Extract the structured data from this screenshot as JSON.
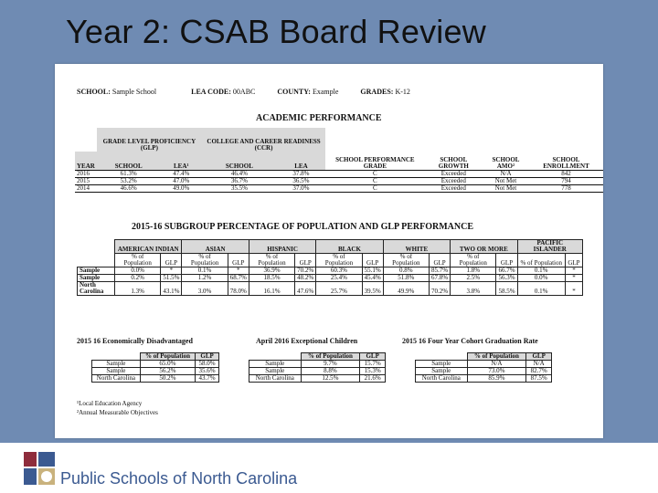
{
  "slide": {
    "title": "Year 2: CSAB Board Review",
    "footer": "Public Schools of North Carolina"
  },
  "header": {
    "school_label": "SCHOOL:",
    "school_value": "Sample School",
    "lea_label": "LEA CODE:",
    "lea_value": "00ABC",
    "county_label": "COUNTY:",
    "county_value": "Example",
    "grades_label": "GRADES:",
    "grades_value": "K-12"
  },
  "academic": {
    "title": "ACADEMIC PERFORMANCE",
    "group_glp": "GRADE LEVEL PROFICIENCY (GLP)",
    "group_ccr": "COLLEGE AND CAREER READINESS (CCR)",
    "cols": [
      "YEAR",
      "SCHOOL",
      "LEA¹",
      "SCHOOL",
      "LEA",
      "SCHOOL PERFORMANCE GRADE",
      "SCHOOL GROWTH",
      "SCHOOL AMO²",
      "SCHOOL ENROLLMENT"
    ],
    "rows": [
      [
        "2016",
        "61.3%",
        "47.4%",
        "46.4%",
        "37.8%",
        "C",
        "Exceeded",
        "N/A",
        "842"
      ],
      [
        "2015",
        "53.2%",
        "47.0%",
        "36.7%",
        "36.5%",
        "C",
        "Exceeded",
        "Not Met",
        "794"
      ],
      [
        "2014",
        "46.6%",
        "49.0%",
        "35.5%",
        "37.0%",
        "C",
        "Exceeded",
        "Not Met",
        "778"
      ]
    ]
  },
  "subgroup": {
    "title": "2015-16 SUBGROUP PERCENTAGE OF POPULATION AND GLP PERFORMANCE",
    "groups": [
      "AMERICAN INDIAN",
      "ASIAN",
      "HISPANIC",
      "BLACK",
      "WHITE",
      "TWO OR MORE",
      "PACIFIC ISLANDER"
    ],
    "sub_cols": [
      "% of Population",
      "GLP"
    ],
    "rows": [
      {
        "label": "Sample",
        "vals": [
          "0.0%",
          "*",
          "0.1%",
          "*",
          "36.9%",
          "70.2%",
          "60.3%",
          "55.1%",
          "0.8%",
          "85.7%",
          "1.8%",
          "66.7%",
          "0.1%",
          "*"
        ]
      },
      {
        "label": "Sample",
        "vals": [
          "0.2%",
          "51.5%",
          "1.2%",
          "68.7%",
          "18.5%",
          "48.2%",
          "25.4%",
          "45.4%",
          "51.8%",
          "67.8%",
          "2.5%",
          "56.3%",
          "0.0%",
          "*"
        ]
      },
      {
        "label": "North Carolina",
        "vals": [
          "1.3%",
          "43.1%",
          "3.0%",
          "78.0%",
          "16.1%",
          "47.6%",
          "25.7%",
          "39.5%",
          "49.9%",
          "70.2%",
          "3.8%",
          "58.5%",
          "0.1%",
          "*"
        ]
      }
    ]
  },
  "econ": {
    "title": "2015 16 Economically Disadvantaged",
    "cols": [
      "% of Population",
      "GLP"
    ],
    "rows": [
      [
        "Sample",
        "65.0%",
        "58.0%"
      ],
      [
        "Sample",
        "56.2%",
        "35.6%"
      ],
      [
        "North Carolina",
        "50.2%",
        "43.7%"
      ]
    ]
  },
  "exceptional": {
    "title": "April 2016 Exceptional Children",
    "cols": [
      "% of Population",
      "GLP"
    ],
    "rows": [
      [
        "Sample",
        "9.7%",
        "15.7%"
      ],
      [
        "Sample",
        "8.8%",
        "15.3%"
      ],
      [
        "North Carolina",
        "12.5%",
        "21.6%"
      ]
    ]
  },
  "grad": {
    "title": "2015 16 Four Year Cohort Graduation Rate",
    "cols": [
      "% of Population",
      "GLP"
    ],
    "rows": [
      [
        "Sample",
        "N/A",
        "N/A"
      ],
      [
        "Sample",
        "73.0%",
        "82.7%"
      ],
      [
        "North Carolina",
        "85.9%",
        "87.5%"
      ]
    ]
  },
  "notes": [
    "¹Local Education Agency",
    "²Annual Measurable Objectives"
  ]
}
